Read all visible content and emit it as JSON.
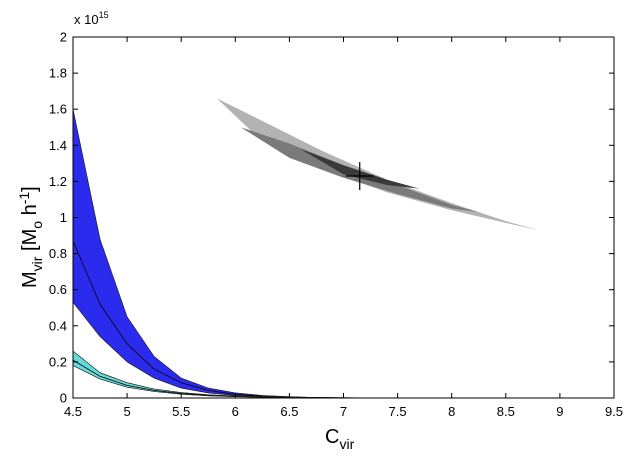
{
  "chart_data": {
    "type": "area",
    "title": "",
    "xlabel": {
      "main": "C",
      "sub": "vir"
    },
    "ylabel": {
      "main": "M",
      "sub": "vir",
      "unit_open": "  [M",
      "unit_sub": "o",
      "unit_mid": " h",
      "unit_sup": "-1",
      "unit_close": "]"
    },
    "y_multiplier": {
      "base": "x 10",
      "exp": "15"
    },
    "xlim": [
      4.5,
      9.5
    ],
    "ylim": [
      0,
      2
    ],
    "xticks": [
      "4.5",
      "5",
      "5.5",
      "6",
      "6.5",
      "7",
      "7.5",
      "8",
      "8.5",
      "9",
      "9.5"
    ],
    "yticks": [
      "0",
      "0.2",
      "0.4",
      "0.6",
      "0.8",
      "1",
      "1.2",
      "1.4",
      "1.6",
      "1.8",
      "2"
    ],
    "grid": false,
    "legend": "none",
    "colors": {
      "blue_band": "#2b2bee",
      "cyan_band": "#66d9d9",
      "contour_outer": "#b3b3b3",
      "contour_mid": "#7a7a7a",
      "contour_inner": "#3a3a3a",
      "line": "#000000"
    },
    "series": [
      {
        "kind": "band",
        "color": "blue_band",
        "x": [
          4.5,
          4.75,
          5.0,
          5.25,
          5.5,
          5.75,
          6.0,
          6.25,
          6.5,
          6.75,
          7.0
        ],
        "upper": [
          1.6,
          0.88,
          0.45,
          0.23,
          0.11,
          0.055,
          0.028,
          0.014,
          0.007,
          0.003,
          0.0
        ],
        "center": [
          0.87,
          0.52,
          0.3,
          0.16,
          0.085,
          0.042,
          0.02,
          0.01,
          0.005,
          0.002,
          0.0
        ],
        "lower": [
          0.53,
          0.34,
          0.2,
          0.11,
          0.055,
          0.028,
          0.014,
          0.007,
          0.003,
          0.001,
          0.0
        ]
      },
      {
        "kind": "band",
        "color": "cyan_band",
        "x": [
          4.5,
          4.75,
          5.0,
          5.25,
          5.5,
          5.75,
          6.0,
          6.5,
          7.0,
          7.35
        ],
        "upper": [
          0.26,
          0.14,
          0.085,
          0.05,
          0.03,
          0.018,
          0.011,
          0.004,
          0.0015,
          0.0
        ],
        "center": [
          0.21,
          0.12,
          0.07,
          0.042,
          0.025,
          0.015,
          0.009,
          0.003,
          0.001,
          0.0
        ],
        "lower": [
          0.18,
          0.105,
          0.06,
          0.036,
          0.021,
          0.012,
          0.007,
          0.0025,
          0.0008,
          0.0
        ]
      },
      {
        "kind": "contour",
        "level": "outer",
        "color": "contour_outer",
        "upper": [
          [
            5.83,
            1.66
          ],
          [
            6.2,
            1.55
          ],
          [
            6.8,
            1.37
          ],
          [
            7.4,
            1.21
          ],
          [
            8.0,
            1.08
          ],
          [
            8.5,
            0.98
          ],
          [
            8.8,
            0.93
          ]
        ],
        "lower": [
          [
            8.8,
            0.93
          ],
          [
            8.5,
            0.97
          ],
          [
            8.0,
            1.04
          ],
          [
            7.4,
            1.14
          ],
          [
            6.8,
            1.27
          ],
          [
            6.2,
            1.45
          ],
          [
            5.83,
            1.66
          ]
        ]
      },
      {
        "kind": "contour",
        "level": "mid",
        "color": "contour_mid",
        "upper": [
          [
            6.05,
            1.5
          ],
          [
            6.5,
            1.41
          ],
          [
            7.0,
            1.29
          ],
          [
            7.5,
            1.18
          ],
          [
            8.0,
            1.07
          ],
          [
            8.25,
            1.03
          ]
        ],
        "lower": [
          [
            8.25,
            1.03
          ],
          [
            8.0,
            1.05
          ],
          [
            7.5,
            1.13
          ],
          [
            7.0,
            1.22
          ],
          [
            6.5,
            1.33
          ],
          [
            6.05,
            1.5
          ]
        ]
      },
      {
        "kind": "contour",
        "level": "inner",
        "color": "contour_inner",
        "upper": [
          [
            6.6,
            1.38
          ],
          [
            7.0,
            1.29
          ],
          [
            7.4,
            1.21
          ],
          [
            7.7,
            1.16
          ]
        ],
        "lower": [
          [
            7.7,
            1.16
          ],
          [
            7.4,
            1.18
          ],
          [
            7.0,
            1.24
          ],
          [
            6.6,
            1.38
          ]
        ]
      }
    ],
    "marker": {
      "kind": "cross",
      "x": 7.15,
      "y": 1.23
    }
  }
}
